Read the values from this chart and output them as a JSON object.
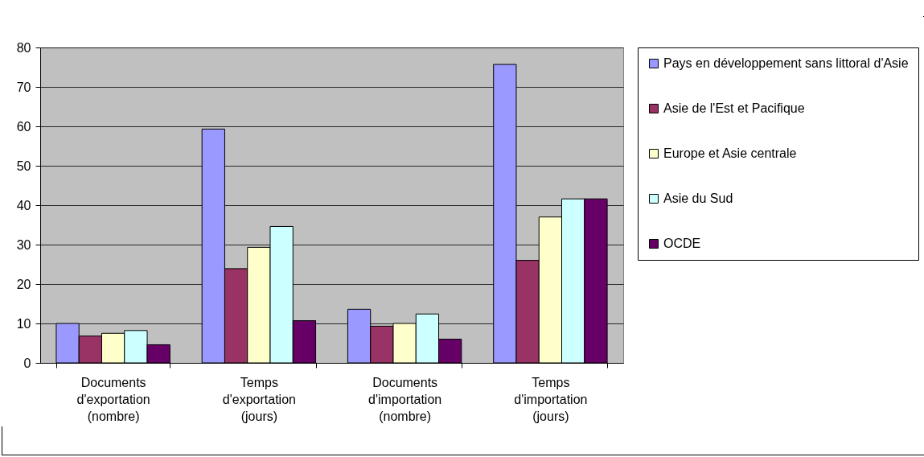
{
  "chart_data": {
    "type": "bar",
    "categories": [
      "Documents d'exportation (nombre)",
      "Temps d'exportation (jours)",
      "Documents d'importation (nombre)",
      "Temps d'importation (jours)"
    ],
    "series": [
      {
        "name": "Pays en développement sans littoral d'Asie",
        "color": "#9999ff",
        "values": [
          10,
          59.3,
          13.6,
          75.7
        ]
      },
      {
        "name": "Asie de l'Est et Pacifique",
        "color": "#993366",
        "values": [
          6.8,
          23.9,
          9.3,
          26
        ]
      },
      {
        "name": "Europe et Asie centrale",
        "color": "#ffffcc",
        "values": [
          7.5,
          29.3,
          10,
          37
        ]
      },
      {
        "name": "Asie du Sud",
        "color": "#ccffff",
        "values": [
          8.2,
          34.6,
          12.4,
          41.6
        ]
      },
      {
        "name": "OCDE",
        "color": "#660066",
        "values": [
          4.6,
          10.7,
          6,
          41.6
        ]
      }
    ],
    "ylim": [
      0,
      80
    ],
    "yticks": [
      0,
      10,
      20,
      30,
      40,
      50,
      60,
      70,
      80
    ],
    "grid": "y",
    "legend": "right"
  }
}
